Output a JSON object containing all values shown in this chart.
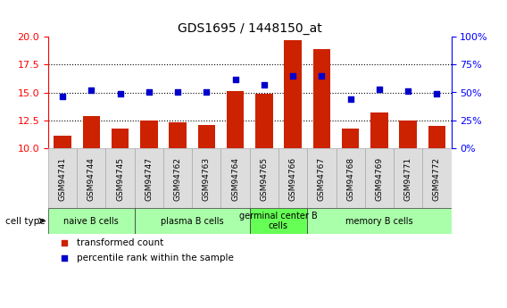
{
  "title": "GDS1695 / 1448150_at",
  "samples": [
    "GSM94741",
    "GSM94744",
    "GSM94745",
    "GSM94747",
    "GSM94762",
    "GSM94763",
    "GSM94764",
    "GSM94765",
    "GSM94766",
    "GSM94767",
    "GSM94768",
    "GSM94769",
    "GSM94771",
    "GSM94772"
  ],
  "bar_values": [
    11.1,
    12.9,
    11.7,
    12.5,
    12.3,
    12.1,
    15.1,
    14.9,
    19.7,
    18.9,
    11.7,
    13.2,
    12.5,
    12.0
  ],
  "dot_values": [
    46,
    52,
    49,
    50,
    50,
    50,
    62,
    57,
    65,
    65,
    44,
    53,
    51,
    49
  ],
  "ylim_left": [
    10,
    20
  ],
  "ylim_right": [
    0,
    100
  ],
  "yticks_left": [
    10,
    12.5,
    15,
    17.5,
    20
  ],
  "yticks_right": [
    0,
    25,
    50,
    75,
    100
  ],
  "ytick_labels_right": [
    "0%",
    "25%",
    "50%",
    "75%",
    "100%"
  ],
  "bar_color": "#cc2200",
  "dot_color": "#0000cc",
  "groups": [
    {
      "label": "naive B cells",
      "start": 0,
      "end": 2,
      "color": "#aaffaa"
    },
    {
      "label": "plasma B cells",
      "start": 3,
      "end": 6,
      "color": "#aaffaa"
    },
    {
      "label": "germinal center B\ncells",
      "start": 7,
      "end": 8,
      "color": "#66ff55"
    },
    {
      "label": "memory B cells",
      "start": 9,
      "end": 13,
      "color": "#aaffaa"
    }
  ],
  "legend_bar_label": "transformed count",
  "legend_dot_label": "percentile rank within the sample",
  "cell_type_label": "cell type"
}
